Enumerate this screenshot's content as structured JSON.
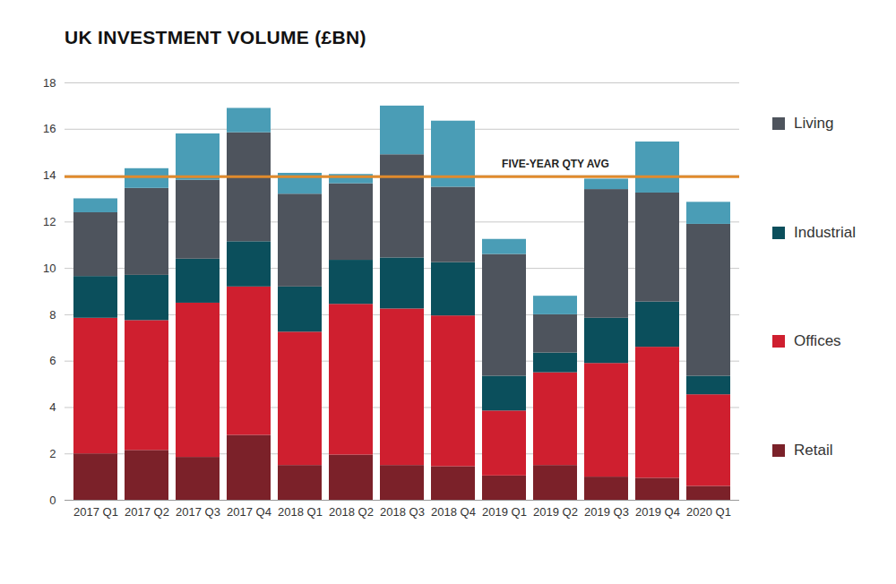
{
  "chart_data": {
    "type": "bar",
    "stacked": true,
    "title": "UK INVESTMENT VOLUME (£BN)",
    "categories": [
      "2017 Q1",
      "2017 Q2",
      "2017 Q3",
      "2017 Q4",
      "2018 Q1",
      "2018 Q2",
      "2018 Q3",
      "2018 Q4",
      "2019 Q1",
      "2019 Q2",
      "2019 Q3",
      "2019 Q4",
      "2020 Q1"
    ],
    "series": [
      {
        "name": "Retail",
        "color": "#7b2129",
        "values": [
          2.0,
          2.15,
          1.85,
          2.8,
          1.5,
          1.95,
          1.5,
          1.45,
          1.05,
          1.5,
          1.0,
          0.95,
          0.6
        ]
      },
      {
        "name": "Offices",
        "color": "#cf1f2f",
        "values": [
          5.85,
          5.6,
          6.65,
          6.4,
          5.75,
          6.5,
          6.75,
          6.5,
          2.8,
          4.0,
          4.9,
          5.65,
          3.95
        ]
      },
      {
        "name": "Industrial",
        "color": "#0b4f5c",
        "values": [
          1.8,
          1.95,
          1.9,
          1.95,
          1.95,
          1.9,
          2.2,
          2.3,
          1.5,
          0.85,
          1.95,
          1.95,
          0.8
        ]
      },
      {
        "name": "Living",
        "color": "#4e545d",
        "values": [
          2.75,
          3.75,
          3.4,
          4.7,
          4.0,
          3.3,
          4.45,
          3.25,
          5.25,
          1.65,
          5.55,
          4.7,
          6.55
        ]
      },
      {
        "name": null,
        "color": "#4a9db6",
        "values": [
          0.6,
          0.85,
          2.0,
          1.05,
          0.9,
          0.4,
          2.1,
          2.85,
          0.65,
          0.8,
          0.45,
          2.2,
          0.95
        ]
      }
    ],
    "reference_line": {
      "value": 13.95,
      "label": "FIVE-YEAR QTY AVG",
      "color": "#e08a2c"
    },
    "ylim": [
      0,
      18
    ],
    "yticks": [
      0,
      2,
      4,
      6,
      8,
      10,
      12,
      14,
      16,
      18
    ],
    "grid": true,
    "legend": "right"
  }
}
